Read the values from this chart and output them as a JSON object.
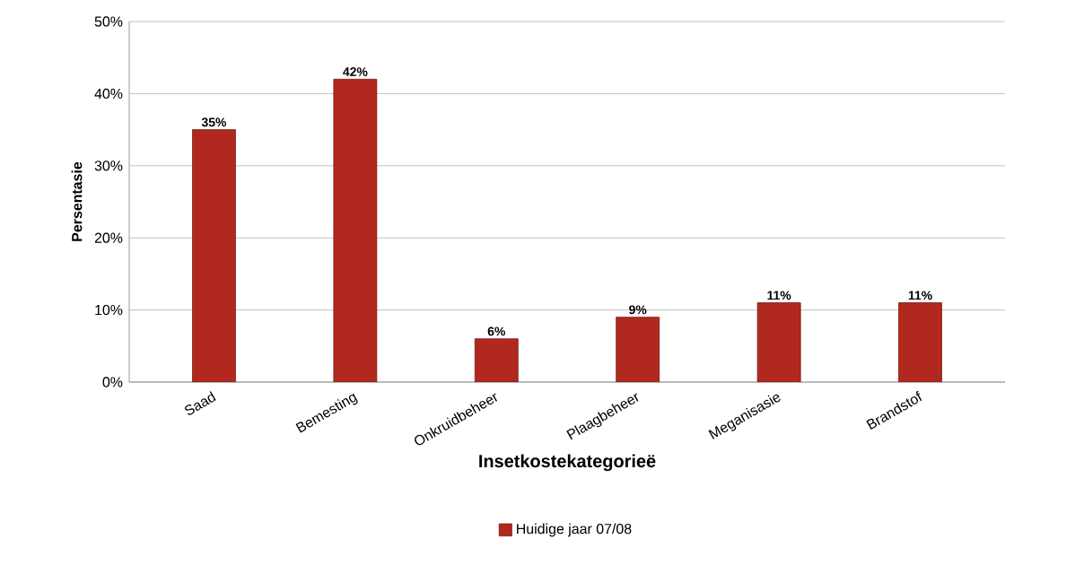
{
  "chart_data": {
    "type": "bar",
    "xlabel": "Insetkostekategorieë",
    "ylabel": "Persentasie",
    "categories": [
      "Saad",
      "Bemesting",
      "Onkruidbeheer",
      "Plaagbeheer",
      "Meganisasie",
      "Brandstof"
    ],
    "series": [
      {
        "name": "Huidige jaar 07/08",
        "color": "#b0281e",
        "values": [
          35,
          42,
          6,
          9,
          11,
          11
        ],
        "value_labels": [
          "35%",
          "42%",
          "6%",
          "9%",
          "11%",
          "11%"
        ]
      }
    ],
    "ylim": [
      0,
      50
    ],
    "yticks": [
      {
        "value": 0,
        "label": "0%"
      },
      {
        "value": 10,
        "label": "10%"
      },
      {
        "value": 20,
        "label": "20%"
      },
      {
        "value": 30,
        "label": "30%"
      },
      {
        "value": 40,
        "label": "40%"
      },
      {
        "value": 50,
        "label": "50%"
      }
    ],
    "grid": "y",
    "legend": "bottom"
  }
}
